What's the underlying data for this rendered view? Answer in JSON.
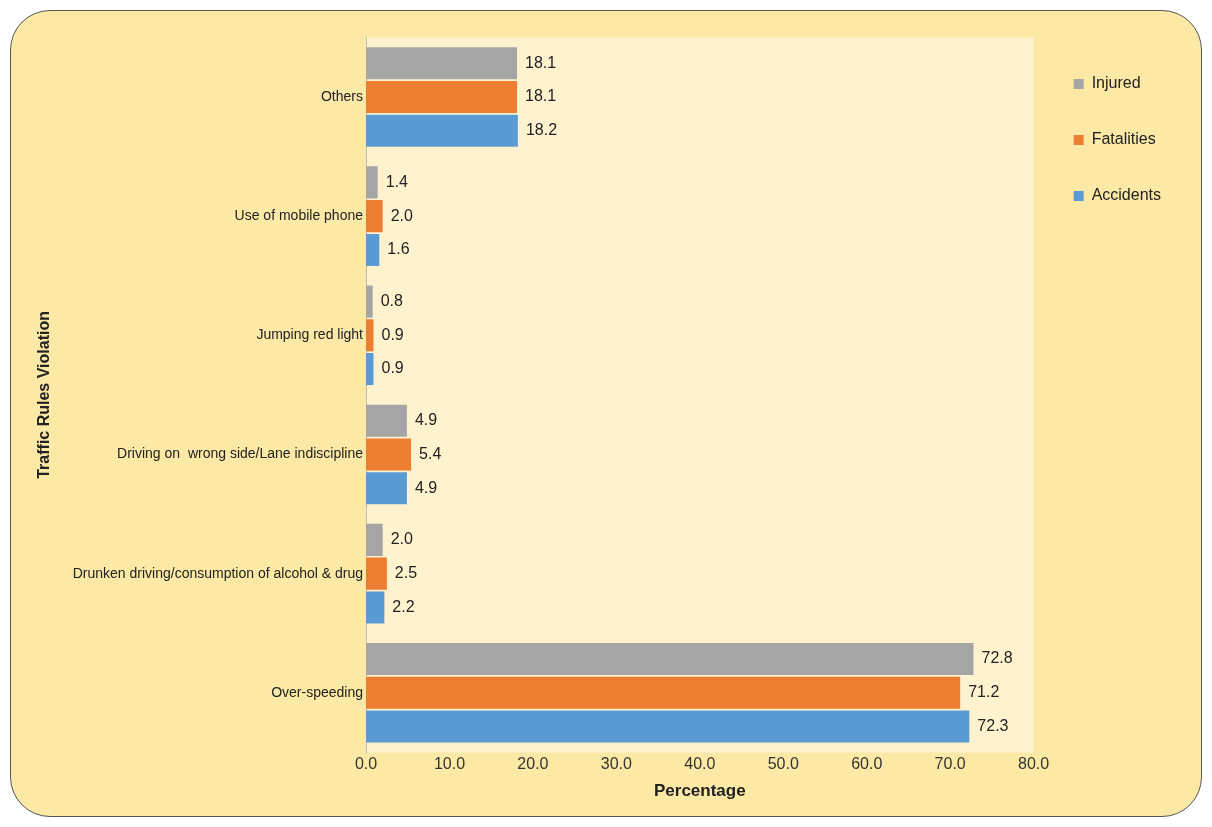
{
  "chart_data": {
    "type": "bar",
    "orientation": "horizontal",
    "xlabel": "Percentage",
    "ylabel": "Traffic Rules Violation",
    "categories": [
      "Others",
      "Use of mobile phone",
      "Jumping red light",
      "Driving on  wrong side/Lane indiscipline",
      "Drunken driving/consumption of alcohol & drug",
      "Over-speeding"
    ],
    "series": [
      {
        "name": "Injured",
        "color": "#a5a5a5",
        "values": [
          18.1,
          1.4,
          0.8,
          4.9,
          2.0,
          72.8
        ],
        "value_labels": [
          "18.1",
          "1.4",
          "0.8",
          "4.9",
          "2.0",
          "72.8"
        ]
      },
      {
        "name": "Fatalities",
        "color": "#ed7d31",
        "values": [
          18.1,
          2.0,
          0.9,
          5.4,
          2.5,
          71.2
        ],
        "value_labels": [
          "18.1",
          "2.0",
          "0.9",
          "5.4",
          "2.5",
          "71.2"
        ]
      },
      {
        "name": "Accidents",
        "color": "#5b9bd5",
        "values": [
          18.2,
          1.6,
          0.9,
          4.9,
          2.2,
          72.3
        ],
        "value_labels": [
          "18.2",
          "1.6",
          "0.9",
          "4.9",
          "2.2",
          "72.3"
        ]
      }
    ],
    "xlim": [
      0,
      80
    ],
    "xticks": [
      {
        "value": 0,
        "label": "0.0"
      },
      {
        "value": 10,
        "label": "10.0"
      },
      {
        "value": 20,
        "label": "20.0"
      },
      {
        "value": 30,
        "label": "30.0"
      },
      {
        "value": 40,
        "label": "40.0"
      },
      {
        "value": 50,
        "label": "50.0"
      },
      {
        "value": 60,
        "label": "60.0"
      },
      {
        "value": 70,
        "label": "70.0"
      },
      {
        "value": 80,
        "label": "80.0"
      }
    ],
    "grid": false,
    "legend": "right"
  }
}
